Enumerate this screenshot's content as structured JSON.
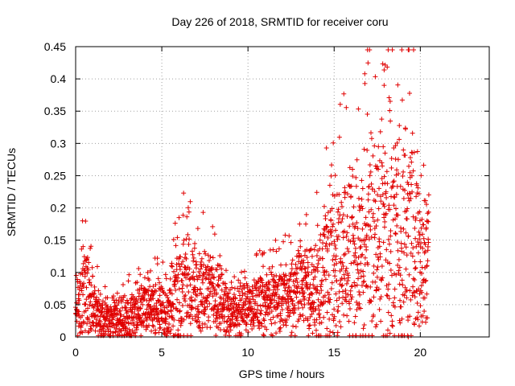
{
  "chart_data": {
    "type": "scatter",
    "title": "Day 226 of 2018, SRMTID for receiver coru",
    "xlabel": "GPS time / hours",
    "ylabel": "SRMTID / TECUs",
    "xlim": [
      0,
      24
    ],
    "ylim": [
      0,
      0.45
    ],
    "x_ticks": [
      0,
      5,
      10,
      15,
      20
    ],
    "y_ticks": [
      0,
      0.05,
      0.1,
      0.15,
      0.2,
      0.25,
      0.3,
      0.35,
      0.4,
      0.45
    ],
    "x_tick_labels": [
      "0",
      "5",
      "10",
      "15",
      "20"
    ],
    "y_tick_labels": [
      "0",
      "0.05",
      "0.1",
      "0.15",
      "0.2",
      "0.25",
      "0.3",
      "0.35",
      "0.4",
      "0.45"
    ],
    "grid": true,
    "marker": "+",
    "color": "#e00000",
    "series": [
      {
        "name": "SRMTID",
        "envelope_x": [
          0,
          0.5,
          1,
          1.5,
          2,
          2.5,
          3,
          3.5,
          4,
          4.5,
          5,
          5.5,
          6,
          6.5,
          7,
          7.5,
          8,
          8.5,
          9,
          9.5,
          10,
          10.5,
          11,
          11.5,
          12,
          12.5,
          13,
          13.5,
          14,
          14.5,
          15,
          15.5,
          16,
          16.5,
          17,
          17.5,
          18,
          18.5,
          19,
          19.5,
          20,
          20.5
        ],
        "envelope_center": [
          0.04,
          0.07,
          0.05,
          0.025,
          0.025,
          0.03,
          0.03,
          0.035,
          0.045,
          0.045,
          0.04,
          0.05,
          0.07,
          0.075,
          0.065,
          0.07,
          0.065,
          0.05,
          0.04,
          0.04,
          0.045,
          0.05,
          0.05,
          0.055,
          0.06,
          0.06,
          0.07,
          0.075,
          0.08,
          0.1,
          0.11,
          0.12,
          0.13,
          0.13,
          0.14,
          0.15,
          0.16,
          0.15,
          0.14,
          0.15,
          0.13,
          0.12
        ],
        "envelope_spread": [
          0.04,
          0.09,
          0.06,
          0.04,
          0.04,
          0.04,
          0.04,
          0.05,
          0.05,
          0.05,
          0.05,
          0.07,
          0.1,
          0.09,
          0.08,
          0.08,
          0.07,
          0.06,
          0.05,
          0.05,
          0.05,
          0.05,
          0.06,
          0.06,
          0.06,
          0.07,
          0.08,
          0.08,
          0.1,
          0.12,
          0.15,
          0.16,
          0.18,
          0.2,
          0.22,
          0.22,
          0.24,
          0.22,
          0.24,
          0.26,
          0.16,
          0.12
        ],
        "notable_points": [
          {
            "x": 0.4,
            "y": 0.18
          },
          {
            "x": 6.0,
            "y": 0.185
          },
          {
            "x": 17.9,
            "y": 0.39
          },
          {
            "x": 19.3,
            "y": 0.445
          },
          {
            "x": 19.3,
            "y": 0.0
          }
        ]
      }
    ]
  }
}
